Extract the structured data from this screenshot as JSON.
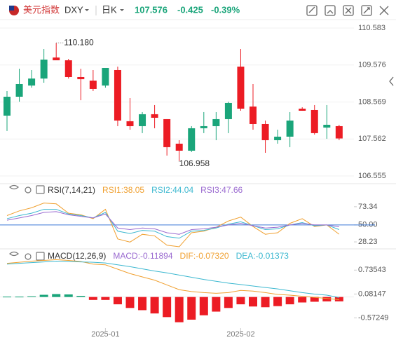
{
  "header": {
    "name": "美元指数",
    "symbol": "DXY",
    "period": "日K",
    "price": "107.576",
    "change": "-0.425",
    "change_pct": "-0.39%"
  },
  "chart_data": [
    {
      "type": "candlestick",
      "up_color": "#1aa57a",
      "down_color": "#ec1c24",
      "open": [
        108.198,
        108.713,
        109.018,
        109.209,
        109.781,
        109.705,
        109.247,
        109.152,
        109.018,
        109.438,
        108.045,
        107.911,
        108.236,
        108.102,
        107.434,
        107.243,
        107.854,
        107.911,
        108.102,
        109.533,
        108.446,
        107.968,
        107.529,
        107.625,
        108.388,
        108.35,
        107.873,
        107.911
      ],
      "high": [
        108.865,
        109.476,
        109.438,
        110.01,
        110.18,
        109.743,
        109.476,
        109.438,
        109.495,
        109.533,
        108.675,
        108.293,
        108.484,
        108.102,
        107.529,
        107.911,
        108.293,
        108.293,
        108.579,
        110.01,
        109.056,
        108.064,
        107.816,
        108.293,
        108.426,
        108.484,
        108.484,
        107.949
      ],
      "low": [
        107.778,
        108.579,
        108.961,
        109.094,
        109.705,
        109.209,
        108.617,
        108.865,
        108.961,
        107.911,
        107.816,
        107.721,
        107.854,
        107.11,
        106.958,
        107.205,
        107.721,
        107.529,
        107.721,
        108.331,
        107.816,
        107.186,
        107.434,
        107.339,
        108.331,
        107.682,
        107.568,
        107.53
      ],
      "close": [
        108.713,
        109.056,
        109.209,
        109.724,
        109.705,
        109.247,
        109.19,
        108.923,
        109.495,
        108.064,
        107.911,
        108.236,
        108.14,
        107.339,
        107.243,
        107.854,
        107.911,
        108.102,
        108.541,
        108.388,
        107.968,
        107.529,
        107.625,
        108.064,
        108.331,
        107.721,
        107.949,
        107.576
      ],
      "ylim": [
        106.345,
        110.774
      ],
      "yticks": [
        110.583,
        109.576,
        108.569,
        107.562,
        106.555
      ],
      "grid": true,
      "annotations": {
        "high": {
          "value": 110.18,
          "label": "110.180"
        },
        "low": 106.958
      }
    },
    {
      "type": "line",
      "title": "RSI(7,14,21)",
      "series": [
        {
          "name": "RSI1:38.05",
          "color": "#f0a030",
          "values": [
            62,
            68,
            72,
            78,
            77,
            65,
            63,
            58,
            70,
            32,
            28,
            38,
            36,
            24,
            22,
            40,
            42,
            47,
            55,
            60,
            48,
            38,
            40,
            52,
            58,
            48,
            50,
            38.05
          ]
        },
        {
          "name": "RSI2:44.04",
          "color": "#3cb8d0",
          "values": [
            58,
            62,
            65,
            70,
            70,
            64,
            62,
            59,
            66,
            42,
            39,
            43,
            42,
            35,
            33,
            42,
            43,
            46,
            51,
            54,
            49,
            44,
            45,
            50,
            53,
            49,
            50,
            44.04
          ]
        },
        {
          "name": "RSI3:47.66",
          "color": "#9a6ad0",
          "values": [
            56,
            59,
            62,
            66,
            67,
            63,
            61,
            59,
            64,
            46,
            44,
            46,
            45,
            40,
            38,
            44,
            45,
            47,
            50,
            52,
            49,
            46,
            47,
            50,
            52,
            50,
            50,
            47.66
          ]
        }
      ],
      "hline": {
        "value": 50,
        "color": "#3a78d6"
      },
      "ylim": [
        22,
        84
      ],
      "yticks": [
        73.34,
        {
          "value": 50,
          "label": "50.00"
        },
        28.23
      ]
    },
    {
      "type": "combo",
      "title": "MACD(12,26,9)",
      "series": [
        {
          "name": "MACD:-0.11894",
          "kind": "bar",
          "color": "#9a6ad0",
          "up_color": "#1aa57a",
          "down_color": "#ec1c24",
          "values": [
            0.01,
            0.01,
            0.02,
            0.06,
            0.08,
            0.07,
            0.03,
            -0.08,
            -0.08,
            -0.2,
            -0.3,
            -0.36,
            -0.45,
            -0.55,
            -0.69,
            -0.62,
            -0.5,
            -0.4,
            -0.3,
            -0.2,
            -0.26,
            -0.28,
            -0.25,
            -0.2,
            -0.15,
            -0.13,
            -0.12,
            -0.11894
          ]
        },
        {
          "name": "DIF:-0.07320",
          "kind": "line",
          "color": "#f0a030",
          "values": [
            0.92,
            0.95,
            0.98,
            1.0,
            1.02,
            1.0,
            0.97,
            0.9,
            0.88,
            0.76,
            0.64,
            0.55,
            0.46,
            0.33,
            0.2,
            0.15,
            0.12,
            0.1,
            0.12,
            0.18,
            0.16,
            0.12,
            0.07,
            0.05,
            0.02,
            -0.01,
            -0.04,
            -0.0732
          ]
        },
        {
          "name": "DEA:-0.01373",
          "kind": "line",
          "color": "#3cb8d0",
          "values": [
            0.9,
            0.92,
            0.94,
            0.96,
            0.98,
            0.97,
            0.96,
            0.95,
            0.93,
            0.88,
            0.83,
            0.77,
            0.71,
            0.66,
            0.6,
            0.54,
            0.48,
            0.43,
            0.38,
            0.34,
            0.3,
            0.26,
            0.22,
            0.17,
            0.12,
            0.08,
            0.05,
            -0.01373
          ]
        }
      ],
      "ylim": [
        -0.85,
        1.22
      ],
      "yticks": [
        0.73543,
        0.08147,
        -0.57249
      ],
      "xticks": [
        {
          "value": 8,
          "label": "2025-01"
        },
        {
          "value": 19,
          "label": "2025-02"
        }
      ]
    }
  ]
}
